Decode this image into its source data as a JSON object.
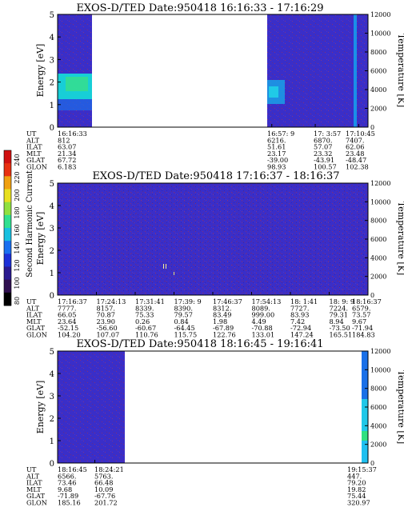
{
  "chart_data": [
    {
      "type": "heatmap",
      "title": "EXOS-D/TED   Date:950418   16:16:33 - 17:16:29",
      "ylabel": "Energy [eV]",
      "ylabel_right": "Temperature [K]",
      "ylim": [
        0,
        5
      ],
      "ylim_right": [
        0,
        12000
      ],
      "yticks": [
        "0",
        "1",
        "2",
        "3",
        "4",
        "5"
      ],
      "yticks_right": [
        "0",
        "2000",
        "4000",
        "6000",
        "8000",
        "10000",
        "12000"
      ],
      "ephemeris_labels": [
        "UT",
        "ALT",
        "ILAT",
        "MLT",
        "GLAT",
        "GLON"
      ],
      "ephemeris": [
        {
          "t": 0.0,
          "values": [
            "16:16:33",
            "812",
            "63.07",
            "21.34",
            "67.72",
            "6.183"
          ]
        },
        {
          "t": 0.69,
          "values": [
            "16:57: 9",
            "6216.",
            "51.61",
            "23.17",
            "-39.00",
            "98.93"
          ]
        },
        {
          "t": 0.83,
          "values": [
            "17: 3:57",
            "6870.",
            "57.07",
            "23.32",
            "-43.91",
            "100.57"
          ]
        },
        {
          "t": 0.97,
          "values": [
            "17:10:45",
            "7407.",
            "62.06",
            "23.48",
            "-48.47",
            "102.38"
          ]
        }
      ]
    },
    {
      "type": "heatmap",
      "title": "EXOS-D/TED   Date:950418   17:16:37 - 18:16:37",
      "ylabel": "Energy [eV]",
      "ylabel_right": "Temperature [K]",
      "ylim": [
        0,
        5
      ],
      "ylim_right": [
        0,
        12000
      ],
      "yticks": [
        "0",
        "1",
        "2",
        "3",
        "4",
        "5"
      ],
      "yticks_right": [
        "0",
        "2000",
        "4000",
        "6000",
        "8000",
        "10000",
        "12000"
      ],
      "colorbar": {
        "label": "Second Harmonic Current",
        "ticks": [
          "80",
          "100",
          "120",
          "140",
          "160",
          "180",
          "200",
          "220",
          "240"
        ]
      },
      "ephemeris_labels": [
        "UT",
        "ALT",
        "ILAT",
        "MLT",
        "GLAT",
        "GLON"
      ],
      "ephemeris": [
        {
          "t": 0.0,
          "values": [
            "17:16:37",
            "7777.",
            "66.05",
            "23.64",
            "-52.15",
            "104.20"
          ]
        },
        {
          "t": 0.125,
          "values": [
            "17:24:13",
            "8157.",
            "70.87",
            "23.90",
            "-56.60",
            "107.07"
          ]
        },
        {
          "t": 0.25,
          "values": [
            "17:31:41",
            "8339.",
            "75.33",
            "0.26",
            "-60.67",
            "110.76"
          ]
        },
        {
          "t": 0.375,
          "values": [
            "17:39: 9",
            "8390.",
            "79.57",
            "0.84",
            "-64.45",
            "115.75"
          ]
        },
        {
          "t": 0.5,
          "values": [
            "17:46:37",
            "8312.",
            "83.49",
            "1.98",
            "-67.89",
            "122.76"
          ]
        },
        {
          "t": 0.625,
          "values": [
            "17:54:13",
            "8089.",
            "999.00",
            "4.49",
            "-70.88",
            "133.01"
          ]
        },
        {
          "t": 0.75,
          "values": [
            "18: 1:41",
            "7727.",
            "83.93",
            "7.42",
            "-72.94",
            "147.24"
          ]
        },
        {
          "t": 0.875,
          "values": [
            "18: 9: 9",
            "7224.",
            "79.31",
            "8.94",
            "-73.50",
            "165.51"
          ]
        },
        {
          "t": 1.0,
          "values": [
            "18:16:37",
            "6579.",
            "73.57",
            "9.67",
            "-71.94",
            "184.83"
          ]
        }
      ]
    },
    {
      "type": "heatmap",
      "title": "EXOS-D/TED   Date:950418   18:16:45 - 19:16:41",
      "ylabel": "Energy [eV]",
      "ylabel_right": "Temperature [K]",
      "ylim": [
        0,
        5
      ],
      "ylim_right": [
        0,
        12000
      ],
      "yticks": [
        "0",
        "1",
        "2",
        "3",
        "4",
        "5"
      ],
      "yticks_right": [
        "0",
        "2000",
        "4000",
        "6000",
        "8000",
        "10000",
        "12000"
      ],
      "ephemeris_labels": [
        "UT",
        "ALT",
        "ILAT",
        "MLT",
        "GLAT",
        "GLON"
      ],
      "ephemeris": [
        {
          "t": 0.0,
          "values": [
            "18:16:45",
            "6566.",
            "73.46",
            "9.68",
            "-71.89",
            "185.16"
          ]
        },
        {
          "t": 0.12,
          "values": [
            "18:24:21",
            "5763.",
            "66.48",
            "10.09",
            "-67.76",
            "201.72"
          ]
        },
        {
          "t": 1.0,
          "values": [
            "19:15:37",
            "447.",
            "79.20",
            "19.82",
            "75.44",
            "320.97"
          ]
        }
      ]
    }
  ],
  "colors": {
    "background_blue": "#3a2ec8",
    "noise_red": "#c01818",
    "cyan": "#14e0d8",
    "green": "#38e088",
    "navy": "#1c1c90"
  }
}
